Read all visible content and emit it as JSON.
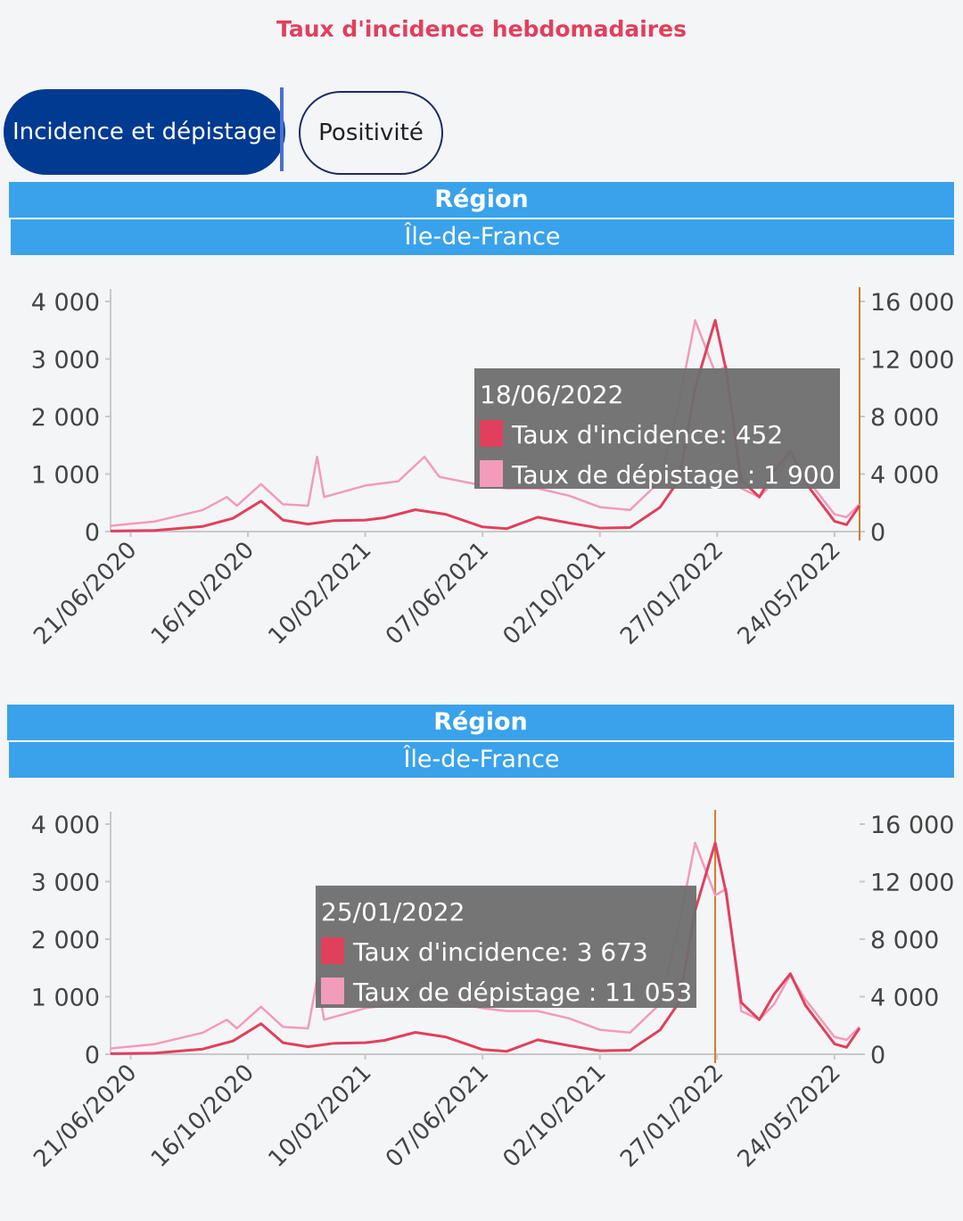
{
  "page": {
    "title": "Taux d'incidence hebdomadaires",
    "tabs": [
      {
        "label": "Incidence et dépistage",
        "active": true
      },
      {
        "label": "Positivité",
        "active": false
      }
    ]
  },
  "colors": {
    "accent": "#003a91",
    "band": "#3aa2ea",
    "incidence": "#e0405c",
    "depistage": "#f29bbb",
    "cursor": "#d17a2c",
    "tooltip_bg": "#6e6e6e"
  },
  "chart_data": [
    {
      "type": "line",
      "band_label": "Région",
      "region": "Île-de-France",
      "x_ticks": [
        "21/06/2020",
        "16/10/2020",
        "10/02/2021",
        "07/06/2021",
        "02/10/2021",
        "27/01/2022",
        "24/05/2022"
      ],
      "y_left_ticks": [
        "4 000",
        "3 000",
        "2 000",
        "1 000",
        "0"
      ],
      "y_right_ticks": [
        "16 000",
        "12 000",
        "8 000",
        "4 000",
        "0"
      ],
      "y_left_range": [
        0,
        4000
      ],
      "y_right_range": [
        0,
        16000
      ],
      "x_range": [
        "2020-06-01",
        "2022-06-18"
      ],
      "series": [
        {
          "name": "Taux d'incidence",
          "axis": "left",
          "points": [
            [
              "2020-06-01",
              10
            ],
            [
              "2020-07-15",
              20
            ],
            [
              "2020-09-01",
              90
            ],
            [
              "2020-10-01",
              230
            ],
            [
              "2020-10-29",
              530
            ],
            [
              "2020-11-20",
              200
            ],
            [
              "2020-12-15",
              130
            ],
            [
              "2021-01-10",
              190
            ],
            [
              "2021-02-10",
              200
            ],
            [
              "2021-03-01",
              240
            ],
            [
              "2021-04-01",
              380
            ],
            [
              "2021-05-01",
              300
            ],
            [
              "2021-06-07",
              80
            ],
            [
              "2021-07-01",
              50
            ],
            [
              "2021-08-01",
              250
            ],
            [
              "2021-09-01",
              150
            ],
            [
              "2021-10-02",
              60
            ],
            [
              "2021-11-01",
              70
            ],
            [
              "2021-12-01",
              420
            ],
            [
              "2021-12-20",
              900
            ],
            [
              "2022-01-05",
              2500
            ],
            [
              "2022-01-25",
              3673
            ],
            [
              "2022-02-05",
              2800
            ],
            [
              "2022-02-20",
              900
            ],
            [
              "2022-03-10",
              600
            ],
            [
              "2022-03-25",
              1050
            ],
            [
              "2022-04-10",
              1400
            ],
            [
              "2022-04-25",
              850
            ],
            [
              "2022-05-24",
              180
            ],
            [
              "2022-06-05",
              120
            ],
            [
              "2022-06-18",
              452
            ]
          ]
        },
        {
          "name": "Taux de dépistage",
          "axis": "right",
          "points": [
            [
              "2020-06-01",
              400
            ],
            [
              "2020-07-15",
              700
            ],
            [
              "2020-09-01",
              1500
            ],
            [
              "2020-09-25",
              2400
            ],
            [
              "2020-10-05",
              1800
            ],
            [
              "2020-10-29",
              3300
            ],
            [
              "2020-11-20",
              1900
            ],
            [
              "2020-12-15",
              1800
            ],
            [
              "2020-12-24",
              5200
            ],
            [
              "2020-12-31",
              2400
            ],
            [
              "2021-02-10",
              3200
            ],
            [
              "2021-03-15",
              3500
            ],
            [
              "2021-04-10",
              5200
            ],
            [
              "2021-04-25",
              3800
            ],
            [
              "2021-06-07",
              3200
            ],
            [
              "2021-07-01",
              3000
            ],
            [
              "2021-08-01",
              3000
            ],
            [
              "2021-09-01",
              2500
            ],
            [
              "2021-10-02",
              1700
            ],
            [
              "2021-11-01",
              1500
            ],
            [
              "2021-12-01",
              3500
            ],
            [
              "2021-12-20",
              9000
            ],
            [
              "2022-01-05",
              14700
            ],
            [
              "2022-01-25",
              11053
            ],
            [
              "2022-02-05",
              11500
            ],
            [
              "2022-02-20",
              3000
            ],
            [
              "2022-03-10",
              2400
            ],
            [
              "2022-03-25",
              3500
            ],
            [
              "2022-04-10",
              5500
            ],
            [
              "2022-04-25",
              3800
            ],
            [
              "2022-05-24",
              1200
            ],
            [
              "2022-06-05",
              1000
            ],
            [
              "2022-06-18",
              1900
            ]
          ]
        }
      ],
      "tooltip": {
        "date": "18/06/2022",
        "lines": [
          {
            "label": "Taux d'incidence: 452",
            "swatch": "incidence"
          },
          {
            "label": "Taux de dépistage : 1 900",
            "swatch": "depistage"
          }
        ]
      },
      "hover_date": "2022-06-18",
      "grid": false,
      "legend": "none"
    },
    {
      "type": "line",
      "band_label": "Région",
      "region": "Île-de-France",
      "x_ticks": [
        "21/06/2020",
        "16/10/2020",
        "10/02/2021",
        "07/06/2021",
        "02/10/2021",
        "27/01/2022",
        "24/05/2022"
      ],
      "y_left_ticks": [
        "4 000",
        "3 000",
        "2 000",
        "1 000",
        "0"
      ],
      "y_right_ticks": [
        "16 000",
        "12 000",
        "8 000",
        "4 000",
        "0"
      ],
      "y_left_range": [
        0,
        4000
      ],
      "y_right_range": [
        0,
        16000
      ],
      "x_range": [
        "2020-06-01",
        "2022-06-18"
      ],
      "series": [
        {
          "name": "Taux d'incidence",
          "axis": "left",
          "points": [
            [
              "2020-06-01",
              10
            ],
            [
              "2020-07-15",
              20
            ],
            [
              "2020-09-01",
              90
            ],
            [
              "2020-10-01",
              230
            ],
            [
              "2020-10-29",
              530
            ],
            [
              "2020-11-20",
              200
            ],
            [
              "2020-12-15",
              130
            ],
            [
              "2021-01-10",
              190
            ],
            [
              "2021-02-10",
              200
            ],
            [
              "2021-03-01",
              240
            ],
            [
              "2021-04-01",
              380
            ],
            [
              "2021-05-01",
              300
            ],
            [
              "2021-06-07",
              80
            ],
            [
              "2021-07-01",
              50
            ],
            [
              "2021-08-01",
              250
            ],
            [
              "2021-09-01",
              150
            ],
            [
              "2021-10-02",
              60
            ],
            [
              "2021-11-01",
              70
            ],
            [
              "2021-12-01",
              420
            ],
            [
              "2021-12-20",
              900
            ],
            [
              "2022-01-05",
              2500
            ],
            [
              "2022-01-25",
              3673
            ],
            [
              "2022-02-05",
              2800
            ],
            [
              "2022-02-20",
              900
            ],
            [
              "2022-03-10",
              600
            ],
            [
              "2022-03-25",
              1050
            ],
            [
              "2022-04-10",
              1400
            ],
            [
              "2022-04-25",
              850
            ],
            [
              "2022-05-24",
              180
            ],
            [
              "2022-06-05",
              120
            ],
            [
              "2022-06-18",
              452
            ]
          ]
        },
        {
          "name": "Taux de dépistage",
          "axis": "right",
          "points": [
            [
              "2020-06-01",
              400
            ],
            [
              "2020-07-15",
              700
            ],
            [
              "2020-09-01",
              1500
            ],
            [
              "2020-09-25",
              2400
            ],
            [
              "2020-10-05",
              1800
            ],
            [
              "2020-10-29",
              3300
            ],
            [
              "2020-11-20",
              1900
            ],
            [
              "2020-12-15",
              1800
            ],
            [
              "2020-12-24",
              5200
            ],
            [
              "2020-12-31",
              2400
            ],
            [
              "2021-02-10",
              3200
            ],
            [
              "2021-03-15",
              3500
            ],
            [
              "2021-04-10",
              5200
            ],
            [
              "2021-04-25",
              3800
            ],
            [
              "2021-06-07",
              3200
            ],
            [
              "2021-07-01",
              3000
            ],
            [
              "2021-08-01",
              3000
            ],
            [
              "2021-09-01",
              2500
            ],
            [
              "2021-10-02",
              1700
            ],
            [
              "2021-11-01",
              1500
            ],
            [
              "2021-12-01",
              3500
            ],
            [
              "2021-12-20",
              9000
            ],
            [
              "2022-01-05",
              14700
            ],
            [
              "2022-01-25",
              11053
            ],
            [
              "2022-02-05",
              11500
            ],
            [
              "2022-02-20",
              3000
            ],
            [
              "2022-03-10",
              2400
            ],
            [
              "2022-03-25",
              3500
            ],
            [
              "2022-04-10",
              5500
            ],
            [
              "2022-04-25",
              3800
            ],
            [
              "2022-05-24",
              1200
            ],
            [
              "2022-06-05",
              1000
            ],
            [
              "2022-06-18",
              1900
            ]
          ]
        }
      ],
      "tooltip": {
        "date": "25/01/2022",
        "lines": [
          {
            "label": "Taux d'incidence: 3 673",
            "swatch": "incidence"
          },
          {
            "label": "Taux de dépistage : 11 053",
            "swatch": "depistage"
          }
        ]
      },
      "hover_date": "2022-01-25",
      "grid": false,
      "legend": "none"
    }
  ]
}
